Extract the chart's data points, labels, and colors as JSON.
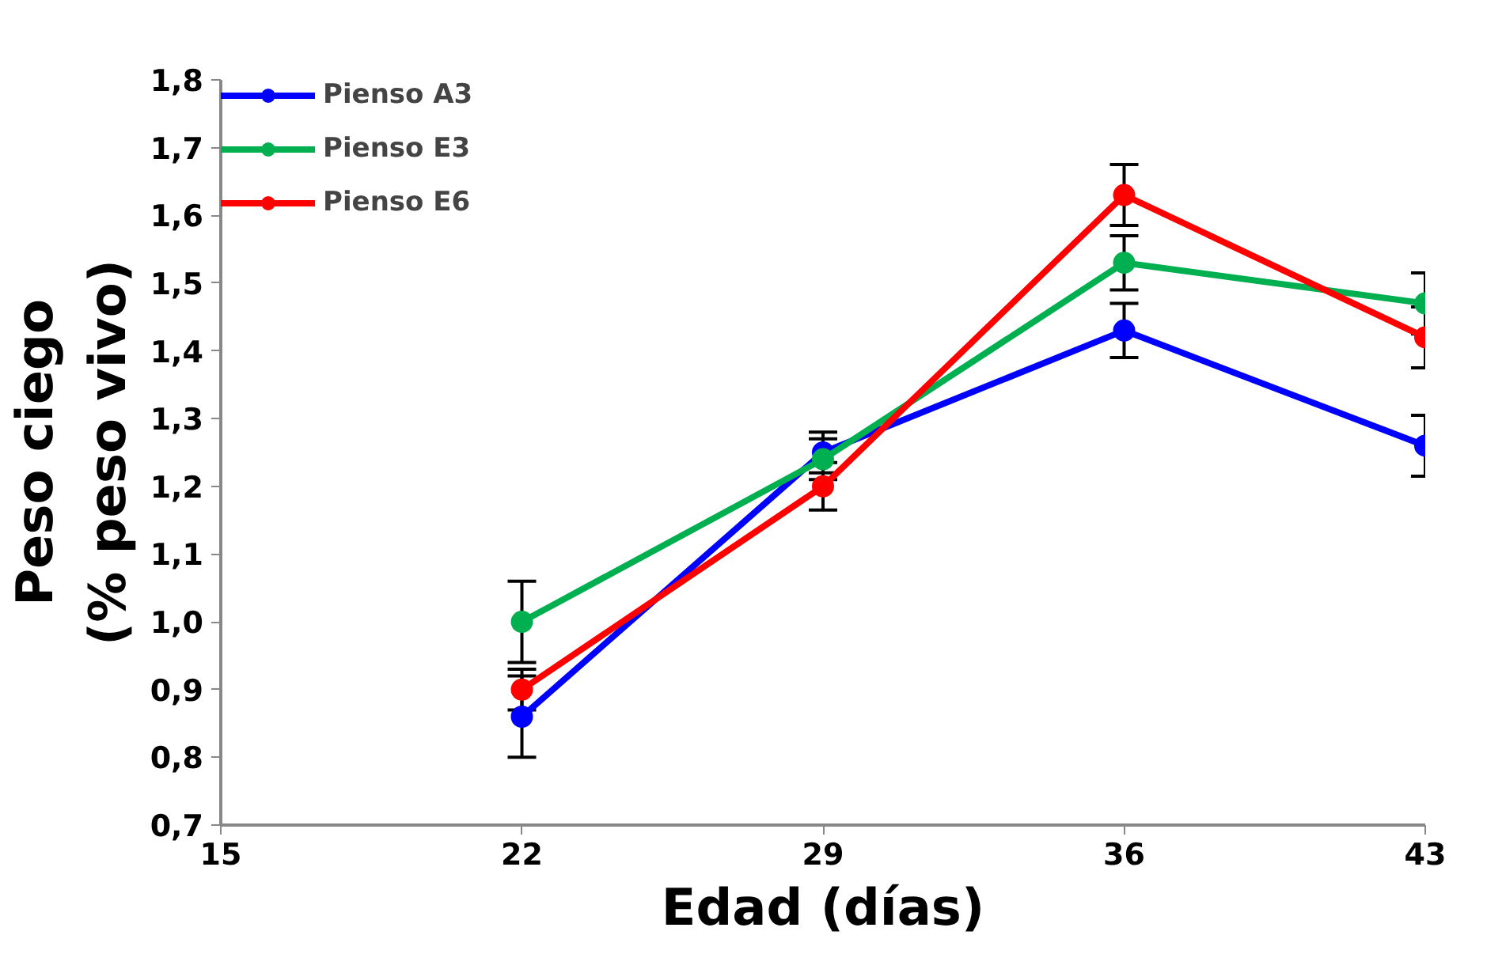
{
  "chart_data": {
    "type": "line",
    "xlabel": "Edad (días)",
    "ylabel": "Peso ciego\n(% peso vivo)",
    "x": [
      22,
      29,
      36,
      43
    ],
    "xlim": [
      15,
      43
    ],
    "xticks": [
      15,
      22,
      29,
      36,
      43
    ],
    "ylim": [
      0.7,
      1.8
    ],
    "yticks": [
      {
        "value": 0.7,
        "label": "0,7"
      },
      {
        "value": 0.8,
        "label": "0,8"
      },
      {
        "value": 0.9,
        "label": "0,9"
      },
      {
        "value": 1.0,
        "label": "1,0"
      },
      {
        "value": 1.1,
        "label": "1,1"
      },
      {
        "value": 1.2,
        "label": "1,2"
      },
      {
        "value": 1.3,
        "label": "1,3"
      },
      {
        "value": 1.4,
        "label": "1,4"
      },
      {
        "value": 1.5,
        "label": "1,5"
      },
      {
        "value": 1.6,
        "label": "1,6"
      },
      {
        "value": 1.7,
        "label": "1,7"
      },
      {
        "value": 1.8,
        "label": "1,8"
      }
    ],
    "series": [
      {
        "name": "Pienso A3",
        "color": "#0000ff",
        "values": [
          0.86,
          1.25,
          1.43,
          1.26
        ],
        "errors": [
          0.06,
          0.03,
          0.04,
          0.045
        ]
      },
      {
        "name": "Pienso E3",
        "color": "#00b050",
        "values": [
          1.0,
          1.24,
          1.53,
          1.47
        ],
        "errors": [
          0.06,
          0.03,
          0.04,
          0.045
        ]
      },
      {
        "name": "Pienso E6",
        "color": "#ff0000",
        "values": [
          0.9,
          1.2,
          1.63,
          1.42
        ],
        "errors": [
          0.03,
          0.035,
          0.045,
          0.045
        ]
      }
    ],
    "marker": "circle",
    "line_style": "solid",
    "grid": false,
    "legend": "top left"
  }
}
